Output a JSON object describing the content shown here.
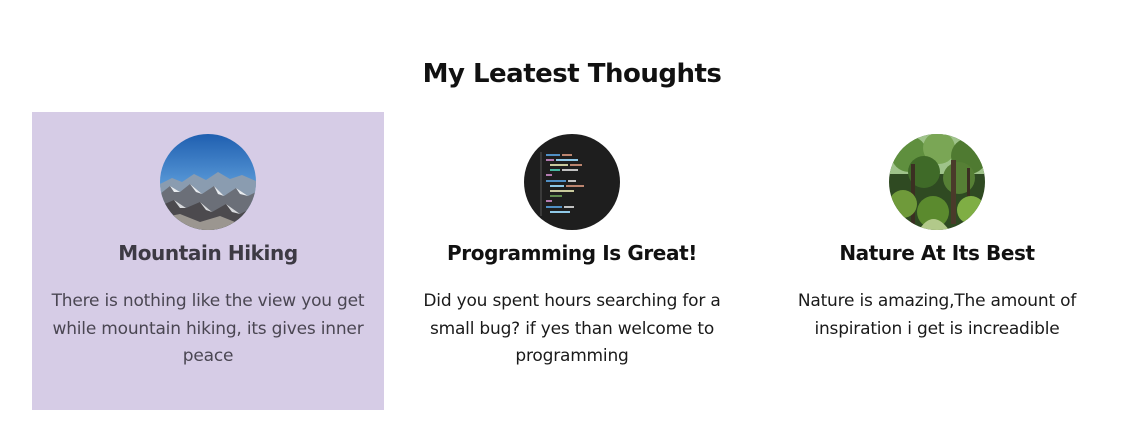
{
  "section": {
    "title": "My Leatest Thoughts"
  },
  "colors": {
    "active_card_background": "#d6cce6",
    "page_background": "#ffffff"
  },
  "cards": [
    {
      "title": "Mountain Hiking",
      "text": "There is nothing like the view you get while mountain hiking, its gives inner peace",
      "image_icon": "mountain-photo",
      "active": true
    },
    {
      "title": "Programming Is Great!",
      "text": "Did you spent hours searching for a small bug? if yes than welcome to programming",
      "image_icon": "code-screen-photo",
      "active": false
    },
    {
      "title": "Nature At Its Best",
      "text": "Nature is amazing,The amount of inspiration i get is increadible",
      "image_icon": "forest-photo",
      "active": false
    }
  ]
}
